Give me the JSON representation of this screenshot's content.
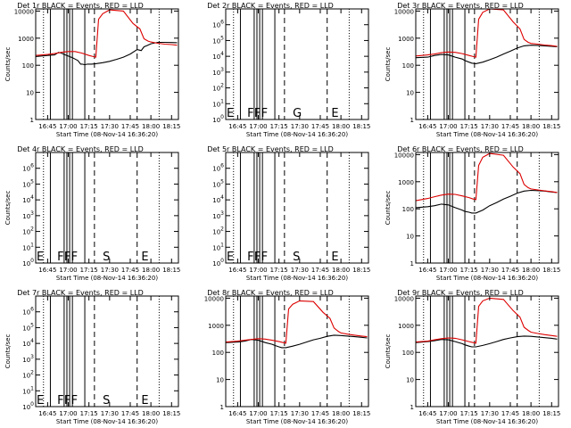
{
  "chart_data": [
    {
      "type": "line",
      "title": "Det 1r BLACK = Events, RED = LLD",
      "xlabel": "Start Time (08-Nov-14 16:36:20)",
      "ylabel": "Counts/sec",
      "scale": "log",
      "xlim": [
        "16:36:20",
        "18:20:00"
      ],
      "ylim": [
        1,
        12000
      ],
      "xticks": [
        "16:45",
        "17:00",
        "17:15",
        "17:30",
        "17:45",
        "18:00",
        "18:15"
      ],
      "yticks": [
        "1",
        "10",
        "100",
        "1000",
        "10000"
      ],
      "flags": [],
      "series": [
        {
          "name": "BLACK = Events",
          "color": "#000000",
          "x": [
            "16:36:20",
            "16:45",
            "16:50",
            "16:53",
            "16:55",
            "16:58",
            "17:03",
            "17:07",
            "17:09",
            "17:10",
            "17:12",
            "17:14",
            "17:16",
            "17:17",
            "17:20",
            "17:25",
            "17:30",
            "17:35",
            "17:40",
            "17:45",
            "17:50",
            "17:53",
            "17:55",
            "17:57",
            "18:00",
            "18:05",
            "18:10",
            "18:15",
            "18:19"
          ],
          "values": [
            210,
            230,
            240,
            300,
            280,
            240,
            190,
            150,
            110,
            110,
            105,
            110,
            110,
            110,
            115,
            125,
            140,
            165,
            200,
            260,
            380,
            350,
            480,
            530,
            620,
            700,
            700,
            690,
            680
          ]
        },
        {
          "name": "RED = LLD",
          "color": "#dd0000",
          "x": [
            "16:36:20",
            "16:45",
            "16:50",
            "16:55",
            "17:00",
            "17:05",
            "17:10",
            "17:15",
            "17:18",
            "17:20",
            "17:22",
            "17:25",
            "17:30",
            "17:40",
            "17:47",
            "17:52",
            "17:55",
            "17:58",
            "18:00",
            "18:05",
            "18:10",
            "18:15",
            "18:19"
          ],
          "values": [
            230,
            250,
            270,
            300,
            320,
            320,
            280,
            230,
            210,
            200,
            5000,
            8000,
            11000,
            10000,
            3500,
            2200,
            950,
            780,
            720,
            650,
            600,
            580,
            550
          ]
        }
      ]
    },
    {
      "type": "line",
      "title": "Det 2r BLACK = Events, RED = LLD",
      "xlabel": "Start Time (08-Nov-14 16:36:20)",
      "ylabel": "",
      "scale": "log",
      "xlim": [
        "16:36:20",
        "18:20:00"
      ],
      "ylim": [
        1,
        10000000
      ],
      "xticks": [
        "16:45",
        "17:00",
        "17:15",
        "17:30",
        "17:45",
        "18:00",
        "18:15"
      ],
      "yticks": [
        "10^0",
        "10^1",
        "10^2",
        "10^3",
        "10^4",
        "10^5",
        "10^6"
      ],
      "flags": [
        {
          "label": "E",
          "x": "16:37"
        },
        {
          "label": "F",
          "x": "16:52"
        },
        {
          "label": "F",
          "x": "16:57"
        },
        {
          "label": "F",
          "x": "17:02"
        },
        {
          "label": "G",
          "x": "17:25"
        },
        {
          "label": "E",
          "x": "17:53"
        }
      ],
      "series": []
    },
    {
      "type": "line",
      "title": "Det 3r BLACK = Events, RED = LLD",
      "xlabel": "Start Time (08-Nov-14 16:36:20)",
      "ylabel": "Counts/sec",
      "scale": "log",
      "xlim": [
        "16:36:20",
        "18:20:00"
      ],
      "ylim": [
        1,
        12000
      ],
      "xticks": [
        "16:45",
        "17:00",
        "17:15",
        "17:30",
        "17:45",
        "18:00",
        "18:15"
      ],
      "yticks": [
        "1",
        "10",
        "100",
        "1000",
        "10000"
      ],
      "flags": [],
      "series": [
        {
          "name": "BLACK = Events",
          "color": "#000000",
          "x": [
            "16:36:20",
            "16:45",
            "16:50",
            "16:55",
            "17:00",
            "17:05",
            "17:10",
            "17:12",
            "17:15",
            "17:17",
            "17:20",
            "17:25",
            "17:30",
            "17:35",
            "17:40",
            "17:45",
            "17:50",
            "17:55",
            "18:00",
            "18:05",
            "18:10",
            "18:15",
            "18:19"
          ],
          "values": [
            190,
            200,
            230,
            250,
            240,
            200,
            170,
            150,
            130,
            120,
            115,
            130,
            160,
            200,
            260,
            330,
            430,
            520,
            550,
            540,
            520,
            500,
            480
          ]
        },
        {
          "name": "RED = LLD",
          "color": "#dd0000",
          "x": [
            "16:36:20",
            "16:45",
            "16:50",
            "16:55",
            "17:00",
            "17:05",
            "17:10",
            "17:15",
            "17:18",
            "17:20",
            "17:22",
            "17:25",
            "17:30",
            "17:40",
            "17:47",
            "17:52",
            "17:55",
            "17:58",
            "18:00",
            "18:05",
            "18:10",
            "18:15",
            "18:19"
          ],
          "values": [
            220,
            240,
            260,
            290,
            310,
            300,
            270,
            230,
            210,
            200,
            5000,
            9000,
            12000,
            11000,
            4000,
            2200,
            900,
            700,
            640,
            600,
            560,
            530,
            500
          ]
        }
      ]
    },
    {
      "type": "line",
      "title": "Det 4r BLACK = Events, RED = LLD",
      "xlabel": "Start Time (08-Nov-14 16:36:20)",
      "ylabel": "Counts/sec",
      "scale": "log",
      "xlim": [
        "16:36:20",
        "18:20:00"
      ],
      "ylim": [
        1,
        10000000
      ],
      "xticks": [
        "16:45",
        "17:00",
        "17:15",
        "17:30",
        "17:45",
        "18:00",
        "18:15"
      ],
      "yticks": [
        "10^0",
        "10^1",
        "10^2",
        "10^3",
        "10^4",
        "10^5",
        "10^6"
      ],
      "flags": [
        {
          "label": "E",
          "x": "16:37"
        },
        {
          "label": "F",
          "x": "16:52"
        },
        {
          "label": "F",
          "x": "16:57"
        },
        {
          "label": "F",
          "x": "17:02"
        },
        {
          "label": "S",
          "x": "17:25"
        },
        {
          "label": "E",
          "x": "17:53"
        }
      ],
      "series": []
    },
    {
      "type": "line",
      "title": "Det 5r BLACK = Events, RED = LLD",
      "xlabel": "Start Time (08-Nov-14 16:36:20)",
      "ylabel": "",
      "scale": "log",
      "xlim": [
        "16:36:20",
        "18:20:00"
      ],
      "ylim": [
        1,
        10000000
      ],
      "xticks": [
        "16:45",
        "17:00",
        "17:15",
        "17:30",
        "17:45",
        "18:00",
        "18:15"
      ],
      "yticks": [
        "10^0",
        "10^1",
        "10^2",
        "10^3",
        "10^4",
        "10^5",
        "10^6"
      ],
      "flags": [
        {
          "label": "E",
          "x": "16:37"
        },
        {
          "label": "F",
          "x": "16:52"
        },
        {
          "label": "F",
          "x": "16:57"
        },
        {
          "label": "F",
          "x": "17:02"
        },
        {
          "label": "S",
          "x": "17:25"
        },
        {
          "label": "E",
          "x": "17:53"
        }
      ],
      "series": []
    },
    {
      "type": "line",
      "title": "Det 6r BLACK = Events, RED = LLD",
      "xlabel": "Start Time (08-Nov-14 16:36:20)",
      "ylabel": "Counts/sec",
      "scale": "log",
      "xlim": [
        "16:36:20",
        "18:20:00"
      ],
      "ylim": [
        1,
        12000
      ],
      "xticks": [
        "16:45",
        "17:00",
        "17:15",
        "17:30",
        "17:45",
        "18:00",
        "18:15"
      ],
      "yticks": [
        "1",
        "10",
        "100",
        "1000",
        "10000"
      ],
      "flags": [],
      "series": [
        {
          "name": "BLACK = Events",
          "color": "#000000",
          "x": [
            "16:36:20",
            "16:45",
            "16:50",
            "16:55",
            "17:00",
            "17:05",
            "17:10",
            "17:12",
            "17:15",
            "17:17",
            "17:20",
            "17:25",
            "17:30",
            "17:35",
            "17:40",
            "17:45",
            "17:50",
            "17:55",
            "18:00",
            "18:05",
            "18:10",
            "18:15",
            "18:19"
          ],
          "values": [
            110,
            120,
            130,
            150,
            140,
            110,
            90,
            80,
            75,
            70,
            70,
            90,
            130,
            170,
            230,
            290,
            380,
            450,
            480,
            470,
            450,
            420,
            400
          ]
        },
        {
          "name": "RED = LLD",
          "color": "#dd0000",
          "x": [
            "16:36:20",
            "16:45",
            "16:50",
            "16:55",
            "17:00",
            "17:05",
            "17:10",
            "17:15",
            "17:18",
            "17:20",
            "17:22",
            "17:25",
            "17:30",
            "17:40",
            "17:47",
            "17:52",
            "17:55",
            "17:58",
            "18:00",
            "18:05",
            "18:10",
            "18:15",
            "18:19"
          ],
          "values": [
            200,
            240,
            280,
            320,
            350,
            340,
            300,
            260,
            230,
            220,
            4000,
            8000,
            11000,
            9500,
            3500,
            2000,
            800,
            600,
            540,
            500,
            460,
            430,
            400
          ]
        }
      ]
    },
    {
      "type": "line",
      "title": "Det 7r BLACK = Events, RED = LLD",
      "xlabel": "Start Time (08-Nov-14 16:36:20)",
      "ylabel": "Counts/sec",
      "scale": "log",
      "xlim": [
        "16:36:20",
        "18:20:00"
      ],
      "ylim": [
        1,
        10000000
      ],
      "xticks": [
        "16:45",
        "17:00",
        "17:15",
        "17:30",
        "17:45",
        "18:00",
        "18:15"
      ],
      "yticks": [
        "10^0",
        "10^1",
        "10^2",
        "10^3",
        "10^4",
        "10^5",
        "10^6"
      ],
      "flags": [
        {
          "label": "E",
          "x": "16:37"
        },
        {
          "label": "F",
          "x": "16:52"
        },
        {
          "label": "F",
          "x": "16:57"
        },
        {
          "label": "F",
          "x": "17:02"
        },
        {
          "label": "S",
          "x": "17:25"
        },
        {
          "label": "E",
          "x": "17:53"
        }
      ],
      "series": []
    },
    {
      "type": "line",
      "title": "Det 8r BLACK = Events, RED = LLD",
      "xlabel": "Start Time (08-Nov-14 16:36:20)",
      "ylabel": "",
      "scale": "log",
      "xlim": [
        "16:36:20",
        "18:20:00"
      ],
      "ylim": [
        1,
        12000
      ],
      "xticks": [
        "16:45",
        "17:00",
        "17:15",
        "17:30",
        "17:45",
        "18:00",
        "18:15"
      ],
      "yticks": [
        "1",
        "10",
        "100",
        "1000",
        "10000"
      ],
      "flags": [],
      "series": [
        {
          "name": "BLACK = Events",
          "color": "#000000",
          "x": [
            "16:36:20",
            "16:45",
            "16:50",
            "16:55",
            "17:00",
            "17:05",
            "17:10",
            "17:12",
            "17:15",
            "17:17",
            "17:20",
            "17:25",
            "17:30",
            "17:35",
            "17:40",
            "17:45",
            "17:50",
            "17:55",
            "18:00",
            "18:05",
            "18:10",
            "18:15",
            "18:19"
          ],
          "values": [
            230,
            240,
            260,
            300,
            280,
            230,
            200,
            180,
            160,
            150,
            150,
            170,
            200,
            240,
            290,
            330,
            390,
            430,
            420,
            400,
            380,
            360,
            340
          ]
        },
        {
          "name": "RED = LLD",
          "color": "#dd0000",
          "x": [
            "16:36:20",
            "16:45",
            "16:50",
            "16:55",
            "17:00",
            "17:05",
            "17:10",
            "17:15",
            "17:18",
            "17:20",
            "17:22",
            "17:25",
            "17:30",
            "17:40",
            "17:47",
            "17:52",
            "17:55",
            "17:58",
            "18:00",
            "18:05",
            "18:10",
            "18:15",
            "18:19"
          ],
          "values": [
            240,
            260,
            280,
            300,
            320,
            310,
            280,
            250,
            230,
            220,
            4000,
            6000,
            8000,
            7500,
            3000,
            1800,
            800,
            600,
            520,
            470,
            430,
            400,
            380
          ]
        }
      ]
    },
    {
      "type": "line",
      "title": "Det 9r BLACK = Events, RED = LLD",
      "xlabel": "Start Time (08-Nov-14 16:36:20)",
      "ylabel": "Counts/sec",
      "scale": "log",
      "xlim": [
        "16:36:20",
        "18:20:00"
      ],
      "ylim": [
        1,
        12000
      ],
      "xticks": [
        "16:45",
        "17:00",
        "17:15",
        "17:30",
        "17:45",
        "18:00",
        "18:15"
      ],
      "yticks": [
        "1",
        "10",
        "100",
        "1000",
        "10000"
      ],
      "flags": [],
      "series": [
        {
          "name": "BLACK = Events",
          "color": "#000000",
          "x": [
            "16:36:20",
            "16:45",
            "16:50",
            "16:55",
            "17:00",
            "17:05",
            "17:10",
            "17:12",
            "17:15",
            "17:17",
            "17:20",
            "17:25",
            "17:30",
            "17:35",
            "17:40",
            "17:45",
            "17:50",
            "17:55",
            "18:00",
            "18:05",
            "18:10",
            "18:15",
            "18:19"
          ],
          "values": [
            230,
            250,
            270,
            300,
            290,
            250,
            210,
            190,
            170,
            160,
            160,
            180,
            210,
            250,
            300,
            340,
            380,
            400,
            390,
            370,
            350,
            330,
            310
          ]
        },
        {
          "name": "RED = LLD",
          "color": "#dd0000",
          "x": [
            "16:36:20",
            "16:45",
            "16:50",
            "16:55",
            "17:00",
            "17:05",
            "17:10",
            "17:15",
            "17:18",
            "17:20",
            "17:22",
            "17:25",
            "17:30",
            "17:40",
            "17:47",
            "17:52",
            "17:55",
            "17:58",
            "18:00",
            "18:05",
            "18:10",
            "18:15",
            "18:19"
          ],
          "values": [
            240,
            260,
            290,
            320,
            340,
            330,
            290,
            250,
            230,
            220,
            5000,
            8000,
            10000,
            9000,
            3500,
            2000,
            850,
            650,
            560,
            500,
            450,
            420,
            390
          ]
        }
      ]
    }
  ],
  "markers": {
    "solid": [
      "16:47",
      "16:57",
      "16:59",
      "17:01",
      "17:03",
      "17:12"
    ],
    "dashed": [
      "17:19",
      "17:50"
    ],
    "dotted": [
      "16:42",
      "18:06"
    ]
  },
  "colors": {
    "background": "#ffffff",
    "axis": "#000000",
    "events": "#000000",
    "lld": "#dd0000"
  }
}
